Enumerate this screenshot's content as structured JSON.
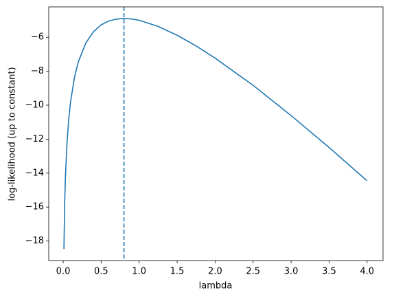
{
  "chart_data": {
    "type": "line",
    "x_label": "lambda",
    "y_label": "log-likelihood (up to constant)",
    "x": [
      0.01,
      0.02,
      0.03,
      0.05,
      0.075,
      0.1,
      0.15,
      0.2,
      0.3,
      0.4,
      0.5,
      0.6,
      0.7,
      0.8,
      0.9,
      1.0,
      1.25,
      1.5,
      1.75,
      2.0,
      2.5,
      3.0,
      3.5,
      4.0
    ],
    "series": [
      {
        "color": "#1f77b4",
        "values": [
          -18.47,
          -15.75,
          -14.18,
          -12.23,
          -10.74,
          -9.71,
          -8.34,
          -7.44,
          -6.32,
          -5.67,
          -5.27,
          -5.04,
          -4.93,
          -4.89,
          -4.92,
          -5.0,
          -5.36,
          -5.88,
          -6.51,
          -7.23,
          -8.83,
          -10.61,
          -12.49,
          -14.45
        ]
      }
    ],
    "vline": 0.8,
    "vline_color": "#1f77b4",
    "xlim": [
      -0.19,
      4.21
    ],
    "ylim": [
      -19.15,
      -4.21
    ],
    "xticks": [
      {
        "value": 0,
        "label": "0.0"
      },
      0.5,
      {
        "value": 1,
        "label": "1.0"
      },
      1.5,
      {
        "value": 2,
        "label": "2.0"
      },
      2.5,
      {
        "value": 3,
        "label": "3.0"
      },
      3.5,
      {
        "value": 4,
        "label": "4.0"
      }
    ],
    "yticks": [
      {
        "value": -18,
        "label": "−18"
      },
      {
        "value": -16,
        "label": "−16"
      },
      {
        "value": -14,
        "label": "−14"
      },
      {
        "value": -12,
        "label": "−12"
      },
      {
        "value": -10,
        "label": "−10"
      },
      {
        "value": -8,
        "label": "−8"
      },
      {
        "value": -6,
        "label": "−6"
      }
    ]
  }
}
